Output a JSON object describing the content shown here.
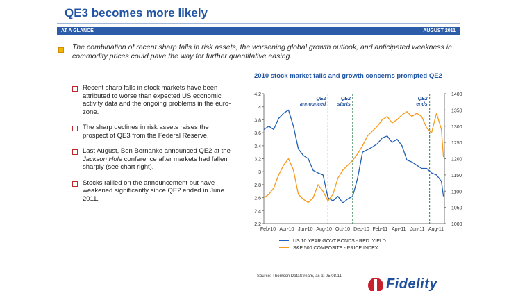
{
  "header": {
    "title": "QE3 becomes more likely",
    "band_left": "AT A GLANCE",
    "band_right": "AUGUST 2011"
  },
  "intro": "The combination of recent sharp falls in risk assets, the worsening global growth outlook, and anticipated weakness in commodity prices could pave the way for further quantitative easing.",
  "bullets": [
    {
      "text": "Recent sharp falls in stock markets have been attributed to worse than expected US economic activity data and the ongoing problems in the euro-zone."
    },
    {
      "text": "The sharp declines in risk assets raises the prospect of QE3 from the Federal Reserve."
    },
    {
      "pre": "Last August, Ben Bernanke announced QE2 at the ",
      "em": "Jackson Hole",
      "post": " conference after markets had fallen sharply (see chart right)."
    },
    {
      "text": "Stocks rallied on the announcement but have weakened significantly since QE2 ended in June 2011."
    }
  ],
  "source": "Source: Thomson DataStream, as at 05.08.11",
  "logo": {
    "text": "Fidelity"
  },
  "colors": {
    "bond": "#1f5fb4",
    "spx": "#f59a1b",
    "accent": "#2155a3",
    "band": "#2d5da8"
  },
  "chart_data": {
    "type": "line",
    "title": "2010 stock market falls and growth concerns prompted QE2",
    "x_tick_labels": [
      "Feb-10",
      "Apr-10",
      "Jun-10",
      "Aug-10",
      "Oct-10",
      "Dec-10",
      "Feb-11",
      "Apr-11",
      "Jun-11",
      "Aug-11"
    ],
    "y_left": {
      "ylim": [
        2.2,
        4.2
      ],
      "ticks": [
        "2.2",
        "2.4",
        "2.6",
        "2.8",
        "3",
        "3.2",
        "3.4",
        "3.6",
        "3.8",
        "4",
        "4.2"
      ]
    },
    "y_right": {
      "ylim": [
        1000,
        1400
      ],
      "ticks": [
        "1000",
        "1050",
        "1100",
        "1150",
        "1200",
        "1250",
        "1300",
        "1350",
        "1400"
      ]
    },
    "x_range": [
      0,
      18.3
    ],
    "x_unit_note": "month offsets from Feb-10",
    "series": [
      {
        "name": "US 10 YEAR GOVT BONDS - RED. YIELD.",
        "axis": "left",
        "x": [
          0,
          0.5,
          1,
          1.5,
          2,
          2.5,
          3,
          3.5,
          4,
          4.5,
          5,
          5.5,
          6,
          6.5,
          7,
          7.5,
          8,
          8.5,
          9,
          9.5,
          10,
          10.5,
          11,
          11.5,
          12,
          12.5,
          13,
          13.5,
          14,
          14.5,
          15,
          15.5,
          16,
          16.5,
          17,
          17.5,
          18,
          18.2
        ],
        "values": [
          3.65,
          3.7,
          3.65,
          3.82,
          3.9,
          3.95,
          3.7,
          3.35,
          3.25,
          3.2,
          3.02,
          2.98,
          2.95,
          2.6,
          2.55,
          2.62,
          2.52,
          2.58,
          2.62,
          2.9,
          3.3,
          3.34,
          3.38,
          3.43,
          3.52,
          3.55,
          3.45,
          3.5,
          3.4,
          3.18,
          3.15,
          3.1,
          3.05,
          3.05,
          2.98,
          2.95,
          2.85,
          2.62
        ]
      },
      {
        "name": "S&P 500 COMPOSITE - PRICE INDEX",
        "axis": "right",
        "x": [
          0,
          0.5,
          1,
          1.5,
          2,
          2.5,
          3,
          3.5,
          4,
          4.5,
          5,
          5.5,
          6,
          6.5,
          7,
          7.5,
          8,
          8.5,
          9,
          9.5,
          10,
          10.5,
          11,
          11.5,
          12,
          12.5,
          13,
          13.5,
          14,
          14.5,
          15,
          15.5,
          16,
          16.5,
          17,
          17.5,
          18,
          18.2
        ],
        "values": [
          1080,
          1090,
          1110,
          1150,
          1180,
          1200,
          1165,
          1090,
          1075,
          1065,
          1080,
          1120,
          1100,
          1070,
          1090,
          1140,
          1165,
          1180,
          1195,
          1215,
          1240,
          1270,
          1285,
          1300,
          1320,
          1330,
          1310,
          1320,
          1335,
          1345,
          1330,
          1340,
          1330,
          1295,
          1280,
          1340,
          1290,
          1205
        ]
      }
    ],
    "annotations": [
      {
        "text": "QE2 announced",
        "x": 6.5
      },
      {
        "text": "QE2 starts",
        "x": 9.0
      },
      {
        "text": "QE2 ends",
        "x": 16.8
      }
    ],
    "legend_position": "bottom",
    "grid": false
  }
}
